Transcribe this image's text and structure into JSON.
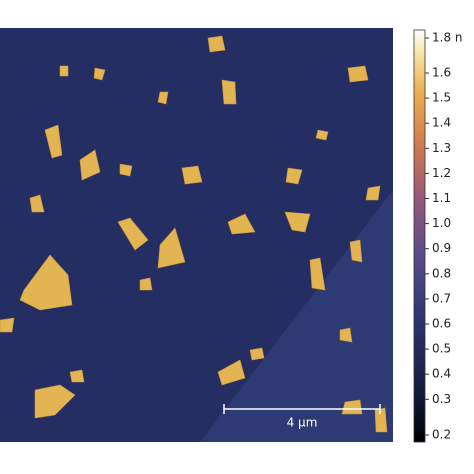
{
  "colorbar": {
    "labels": [
      "1.8 n",
      "1.6",
      "1.5",
      "1.4",
      "1.3",
      "1.2",
      "1.1",
      "1.0",
      "0.9",
      "0.8",
      "0.7",
      "0.6",
      "0.5",
      "0.4",
      "0.3",
      "0.2"
    ]
  },
  "scale_bar": {
    "label": "4 µm"
  }
}
